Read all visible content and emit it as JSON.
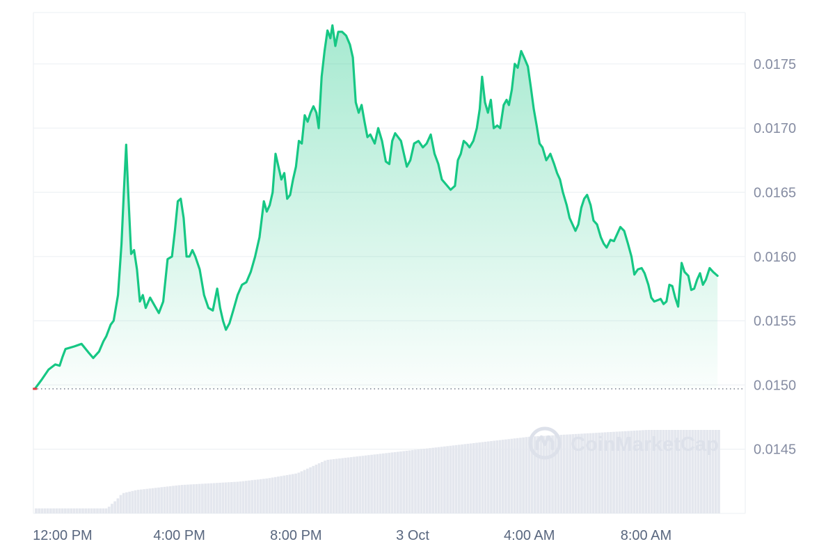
{
  "colors": {
    "line": "#16c784",
    "area_top": "#16c784",
    "grid": "#eff2f5",
    "baseline": "#7f8593",
    "baseline_dot": "#ea3943",
    "volume": "#e4e7ee",
    "axis_text": "#858ca2",
    "watermark": "#dde1ea"
  },
  "watermark": {
    "text": "CoinMarketCap",
    "icon": "coinmarketcap-logo-icon"
  },
  "chart_data": {
    "type": "area",
    "title": "",
    "xlabel": "",
    "ylabel": "",
    "grid": true,
    "y_axis_position": "right",
    "ylim": [
      0.014,
      0.0179
    ],
    "y_ticks": [
      "0.0145",
      "0.0150",
      "0.0155",
      "0.0160",
      "0.0165",
      "0.0170",
      "0.0175"
    ],
    "y_tick_values": [
      0.0145,
      0.015,
      0.0155,
      0.016,
      0.0165,
      0.017,
      0.0175
    ],
    "x_unit": "hours",
    "xlim": [
      11,
      35.4
    ],
    "x_ticks": [
      {
        "x": 12,
        "label": "12:00 PM"
      },
      {
        "x": 16,
        "label": "4:00 PM"
      },
      {
        "x": 20,
        "label": "8:00 PM"
      },
      {
        "x": 24,
        "label": "3 Oct"
      },
      {
        "x": 28,
        "label": "4:00 AM"
      },
      {
        "x": 32,
        "label": "8:00 AM"
      }
    ],
    "baseline": 0.01497,
    "series": [
      {
        "points": [
          [
            11.05,
            0.01497
          ],
          [
            11.28,
            0.01504
          ],
          [
            11.52,
            0.01512
          ],
          [
            11.75,
            0.01516
          ],
          [
            11.9,
            0.01515
          ],
          [
            12.0,
            0.01522
          ],
          [
            12.1,
            0.01528
          ],
          [
            12.4,
            0.0153
          ],
          [
            12.65,
            0.01532
          ],
          [
            12.9,
            0.01525
          ],
          [
            13.05,
            0.01521
          ],
          [
            13.25,
            0.01526
          ],
          [
            13.4,
            0.01534
          ],
          [
            13.5,
            0.01538
          ],
          [
            13.65,
            0.01547
          ],
          [
            13.75,
            0.0155
          ],
          [
            13.9,
            0.0157
          ],
          [
            14.02,
            0.0161
          ],
          [
            14.1,
            0.0165
          ],
          [
            14.18,
            0.01687
          ],
          [
            14.25,
            0.0165
          ],
          [
            14.35,
            0.01602
          ],
          [
            14.45,
            0.01605
          ],
          [
            14.55,
            0.0159
          ],
          [
            14.65,
            0.01565
          ],
          [
            14.75,
            0.0157
          ],
          [
            14.85,
            0.0156
          ],
          [
            15.0,
            0.01568
          ],
          [
            15.15,
            0.01562
          ],
          [
            15.3,
            0.01556
          ],
          [
            15.45,
            0.01565
          ],
          [
            15.6,
            0.01598
          ],
          [
            15.75,
            0.016
          ],
          [
            15.85,
            0.0162
          ],
          [
            15.95,
            0.01643
          ],
          [
            16.05,
            0.01645
          ],
          [
            16.15,
            0.0163
          ],
          [
            16.25,
            0.016
          ],
          [
            16.35,
            0.016
          ],
          [
            16.45,
            0.01605
          ],
          [
            16.55,
            0.016
          ],
          [
            16.7,
            0.0159
          ],
          [
            16.85,
            0.0157
          ],
          [
            17.0,
            0.0156
          ],
          [
            17.15,
            0.01558
          ],
          [
            17.3,
            0.01575
          ],
          [
            17.4,
            0.0156
          ],
          [
            17.5,
            0.0155
          ],
          [
            17.6,
            0.01543
          ],
          [
            17.72,
            0.01548
          ],
          [
            17.85,
            0.01558
          ],
          [
            18.0,
            0.0157
          ],
          [
            18.15,
            0.01578
          ],
          [
            18.3,
            0.0158
          ],
          [
            18.45,
            0.01588
          ],
          [
            18.6,
            0.016
          ],
          [
            18.75,
            0.01615
          ],
          [
            18.9,
            0.01643
          ],
          [
            19.0,
            0.01635
          ],
          [
            19.1,
            0.0164
          ],
          [
            19.2,
            0.0165
          ],
          [
            19.3,
            0.0168
          ],
          [
            19.4,
            0.0167
          ],
          [
            19.5,
            0.0166
          ],
          [
            19.6,
            0.01665
          ],
          [
            19.7,
            0.01645
          ],
          [
            19.8,
            0.01648
          ],
          [
            19.9,
            0.0166
          ],
          [
            20.0,
            0.0167
          ],
          [
            20.1,
            0.0169
          ],
          [
            20.2,
            0.01688
          ],
          [
            20.3,
            0.0171
          ],
          [
            20.4,
            0.01705
          ],
          [
            20.5,
            0.01712
          ],
          [
            20.6,
            0.01717
          ],
          [
            20.7,
            0.01712
          ],
          [
            20.78,
            0.017
          ],
          [
            20.88,
            0.0174
          ],
          [
            20.98,
            0.0176
          ],
          [
            21.08,
            0.01776
          ],
          [
            21.18,
            0.0177
          ],
          [
            21.25,
            0.0178
          ],
          [
            21.35,
            0.01764
          ],
          [
            21.45,
            0.01775
          ],
          [
            21.58,
            0.01775
          ],
          [
            21.72,
            0.01772
          ],
          [
            21.85,
            0.01765
          ],
          [
            21.95,
            0.01755
          ],
          [
            22.05,
            0.0172
          ],
          [
            22.15,
            0.01712
          ],
          [
            22.25,
            0.01718
          ],
          [
            22.35,
            0.01705
          ],
          [
            22.45,
            0.01693
          ],
          [
            22.55,
            0.01695
          ],
          [
            22.7,
            0.01688
          ],
          [
            22.82,
            0.017
          ],
          [
            22.95,
            0.0169
          ],
          [
            23.08,
            0.01674
          ],
          [
            23.2,
            0.01672
          ],
          [
            23.3,
            0.0169
          ],
          [
            23.4,
            0.01696
          ],
          [
            23.5,
            0.01693
          ],
          [
            23.6,
            0.0169
          ],
          [
            23.7,
            0.0168
          ],
          [
            23.8,
            0.0167
          ],
          [
            23.92,
            0.01675
          ],
          [
            24.05,
            0.01688
          ],
          [
            24.2,
            0.0169
          ],
          [
            24.35,
            0.01685
          ],
          [
            24.48,
            0.01688
          ],
          [
            24.62,
            0.01695
          ],
          [
            24.75,
            0.0168
          ],
          [
            24.88,
            0.01672
          ],
          [
            25.0,
            0.0166
          ],
          [
            25.15,
            0.01656
          ],
          [
            25.3,
            0.01652
          ],
          [
            25.45,
            0.01655
          ],
          [
            25.55,
            0.01675
          ],
          [
            25.65,
            0.0168
          ],
          [
            25.75,
            0.0169
          ],
          [
            25.85,
            0.01688
          ],
          [
            25.95,
            0.01685
          ],
          [
            26.08,
            0.0169
          ],
          [
            26.2,
            0.017
          ],
          [
            26.3,
            0.01715
          ],
          [
            26.38,
            0.0174
          ],
          [
            26.48,
            0.0172
          ],
          [
            26.58,
            0.01712
          ],
          [
            26.68,
            0.01722
          ],
          [
            26.78,
            0.017
          ],
          [
            26.9,
            0.01702
          ],
          [
            27.0,
            0.017
          ],
          [
            27.12,
            0.01718
          ],
          [
            27.22,
            0.01722
          ],
          [
            27.3,
            0.01718
          ],
          [
            27.4,
            0.0173
          ],
          [
            27.5,
            0.0175
          ],
          [
            27.6,
            0.01747
          ],
          [
            27.72,
            0.0176
          ],
          [
            27.82,
            0.01755
          ],
          [
            27.95,
            0.01748
          ],
          [
            28.05,
            0.01732
          ],
          [
            28.15,
            0.01715
          ],
          [
            28.25,
            0.01702
          ],
          [
            28.35,
            0.01688
          ],
          [
            28.45,
            0.01685
          ],
          [
            28.58,
            0.01675
          ],
          [
            28.72,
            0.0168
          ],
          [
            28.85,
            0.01672
          ],
          [
            28.95,
            0.01665
          ],
          [
            29.05,
            0.0166
          ],
          [
            29.15,
            0.0165
          ],
          [
            29.28,
            0.0164
          ],
          [
            29.38,
            0.0163
          ],
          [
            29.48,
            0.01625
          ],
          [
            29.58,
            0.0162
          ],
          [
            29.68,
            0.01625
          ],
          [
            29.78,
            0.01638
          ],
          [
            29.88,
            0.01645
          ],
          [
            29.98,
            0.01648
          ],
          [
            30.1,
            0.0164
          ],
          [
            30.2,
            0.01628
          ],
          [
            30.32,
            0.01625
          ],
          [
            30.45,
            0.01615
          ],
          [
            30.55,
            0.0161
          ],
          [
            30.65,
            0.01607
          ],
          [
            30.78,
            0.01613
          ],
          [
            30.9,
            0.01612
          ],
          [
            31.02,
            0.01618
          ],
          [
            31.12,
            0.01623
          ],
          [
            31.25,
            0.0162
          ],
          [
            31.38,
            0.0161
          ],
          [
            31.5,
            0.016
          ],
          [
            31.6,
            0.01586
          ],
          [
            31.72,
            0.0159
          ],
          [
            31.85,
            0.01591
          ],
          [
            31.95,
            0.01587
          ],
          [
            32.08,
            0.01578
          ],
          [
            32.18,
            0.01568
          ],
          [
            32.28,
            0.01565
          ],
          [
            32.4,
            0.01566
          ],
          [
            32.5,
            0.01567
          ],
          [
            32.6,
            0.01563
          ],
          [
            32.7,
            0.01565
          ],
          [
            32.8,
            0.01578
          ],
          [
            32.9,
            0.01577
          ],
          [
            33.0,
            0.01568
          ],
          [
            33.1,
            0.01561
          ],
          [
            33.22,
            0.01595
          ],
          [
            33.32,
            0.01588
          ],
          [
            33.45,
            0.01585
          ],
          [
            33.55,
            0.01574
          ],
          [
            33.65,
            0.01575
          ],
          [
            33.75,
            0.01582
          ],
          [
            33.85,
            0.01587
          ],
          [
            33.95,
            0.01578
          ],
          [
            34.05,
            0.01582
          ],
          [
            34.18,
            0.01591
          ],
          [
            34.3,
            0.01588
          ],
          [
            34.45,
            0.01585
          ]
        ]
      }
    ],
    "volume": {
      "series_type": "bar",
      "points": [
        [
          11.05,
          0.03
        ],
        [
          13.5,
          0.03
        ],
        [
          13.6,
          0.05
        ],
        [
          13.8,
          0.08
        ],
        [
          14.0,
          0.12
        ],
        [
          14.5,
          0.14
        ],
        [
          15.0,
          0.15
        ],
        [
          16.0,
          0.17
        ],
        [
          17.0,
          0.18
        ],
        [
          18.0,
          0.19
        ],
        [
          19.0,
          0.21
        ],
        [
          20.0,
          0.24
        ],
        [
          20.5,
          0.28
        ],
        [
          21.0,
          0.32
        ],
        [
          22.0,
          0.34
        ],
        [
          23.0,
          0.36
        ],
        [
          24.0,
          0.38
        ],
        [
          25.0,
          0.4
        ],
        [
          26.0,
          0.42
        ],
        [
          27.0,
          0.44
        ],
        [
          28.0,
          0.46
        ],
        [
          29.0,
          0.47
        ],
        [
          30.0,
          0.48
        ],
        [
          31.0,
          0.49
        ],
        [
          32.0,
          0.5
        ],
        [
          34.45,
          0.5
        ]
      ]
    }
  }
}
